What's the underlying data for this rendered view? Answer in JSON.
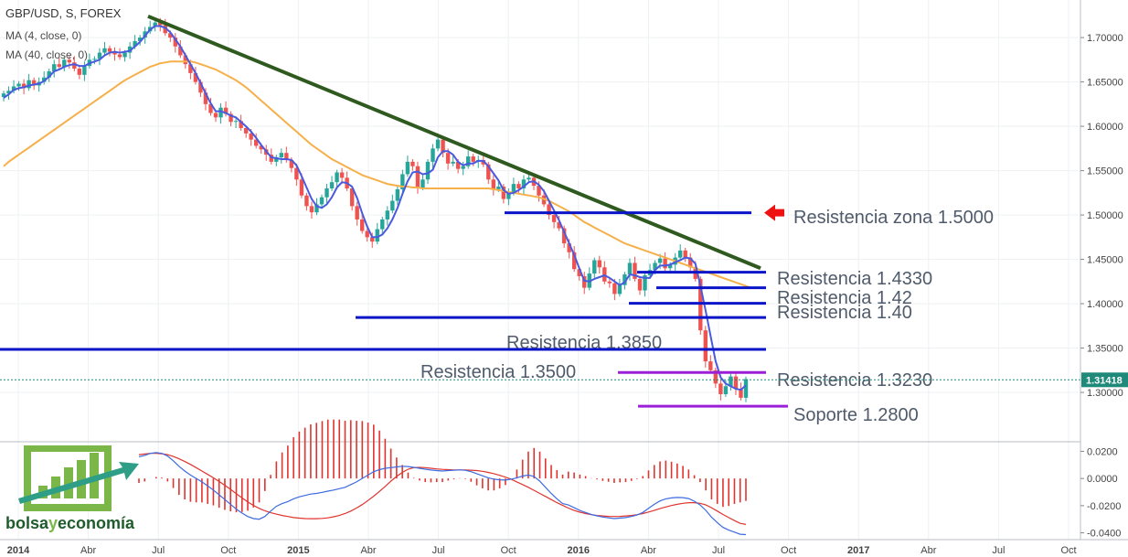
{
  "header": {
    "symbol": "GBP/USD, S, FOREX",
    "ma_fast": "MA (4, close, 0)",
    "ma_slow": "MA (40, close, 0)"
  },
  "logo": {
    "text_bolsa": "bolsa",
    "text_y": "y",
    "text_economia": "economía",
    "brand_green": "#7ab648",
    "brand_dark": "#1e5c2c"
  },
  "colors": {
    "up": "#26a69a",
    "down": "#ef5350",
    "ma_fast": "#4a5adf",
    "ma_slow": "#f5b04a",
    "trendline": "#2f5a1f",
    "resistance": "#0a14c8",
    "support": "#9b1fd6",
    "macd_line": "#3d6be0",
    "signal_line": "#e0342e",
    "histogram": "#e0342e",
    "last_price_bg": "#1f8a7a",
    "arrow": "#ee1111"
  },
  "chart_data": [
    {
      "type": "candlestick",
      "title": "GBP/USD, S, FOREX",
      "ylim": [
        1.265,
        1.73
      ],
      "y_ticks": [
        "1.30000",
        "1.35000",
        "1.40000",
        "1.45000",
        "1.50000",
        "1.55000",
        "1.60000",
        "1.65000",
        "1.70000"
      ],
      "x_ticks": [
        "2014",
        "Abr",
        "Jul",
        "Oct",
        "2015",
        "Abr",
        "Jul",
        "Oct",
        "2016",
        "Abr",
        "Jul",
        "Oct",
        "2017",
        "Abr",
        "Jul",
        "Oct"
      ],
      "last_price": "1.31418",
      "grid": true,
      "closes": [
        1.637,
        1.64,
        1.645,
        1.648,
        1.643,
        1.652,
        1.646,
        1.65,
        1.655,
        1.662,
        1.67,
        1.667,
        1.675,
        1.672,
        1.665,
        1.658,
        1.668,
        1.675,
        1.676,
        1.683,
        1.688,
        1.684,
        1.681,
        1.678,
        1.683,
        1.69,
        1.696,
        1.7,
        1.707,
        1.712,
        1.717,
        1.714,
        1.705,
        1.7,
        1.69,
        1.68,
        1.67,
        1.66,
        1.65,
        1.638,
        1.625,
        1.615,
        1.61,
        1.621,
        1.614,
        1.605,
        1.606,
        1.598,
        1.592,
        1.585,
        1.578,
        1.574,
        1.568,
        1.56,
        1.565,
        1.57,
        1.562,
        1.553,
        1.54,
        1.522,
        1.51,
        1.503,
        1.512,
        1.52,
        1.53,
        1.537,
        1.548,
        1.542,
        1.53,
        1.51,
        1.495,
        1.482,
        1.475,
        1.47,
        1.484,
        1.495,
        1.505,
        1.516,
        1.529,
        1.546,
        1.56,
        1.555,
        1.531,
        1.54,
        1.56,
        1.575,
        1.585,
        1.57,
        1.558,
        1.56,
        1.552,
        1.555,
        1.566,
        1.56,
        1.562,
        1.557,
        1.54,
        1.529,
        1.532,
        1.518,
        1.525,
        1.535,
        1.53,
        1.54,
        1.542,
        1.533,
        1.522,
        1.512,
        1.5,
        1.492,
        1.485,
        1.468,
        1.458,
        1.439,
        1.431,
        1.418,
        1.434,
        1.449,
        1.441,
        1.425,
        1.423,
        1.411,
        1.421,
        1.433,
        1.446,
        1.428,
        1.415,
        1.432,
        1.438,
        1.446,
        1.451,
        1.44,
        1.444,
        1.452,
        1.46,
        1.452,
        1.441,
        1.428,
        1.37,
        1.335,
        1.325,
        1.31,
        1.298,
        1.307,
        1.318,
        1.304,
        1.294,
        1.315
      ],
      "ma_fast": [
        1.632,
        1.636,
        1.641,
        1.643,
        1.644,
        1.646,
        1.647,
        1.648,
        1.651,
        1.656,
        1.662,
        1.664,
        1.667,
        1.669,
        1.67,
        1.668,
        1.668,
        1.671,
        1.673,
        1.675,
        1.68,
        1.683,
        1.684,
        1.683,
        1.684,
        1.685,
        1.69,
        1.695,
        1.702,
        1.709,
        1.713,
        1.713,
        1.711,
        1.706,
        1.698,
        1.69,
        1.68,
        1.67,
        1.66,
        1.649,
        1.637,
        1.626,
        1.617,
        1.617,
        1.615,
        1.612,
        1.61,
        1.605,
        1.6,
        1.594,
        1.587,
        1.579,
        1.572,
        1.565,
        1.564,
        1.563,
        1.563,
        1.562,
        1.556,
        1.544,
        1.531,
        1.518,
        1.51,
        1.508,
        1.512,
        1.52,
        1.531,
        1.537,
        1.536,
        1.532,
        1.519,
        1.502,
        1.487,
        1.475,
        1.475,
        1.478,
        1.485,
        1.495,
        1.508,
        1.524,
        1.538,
        1.548,
        1.549,
        1.546,
        1.547,
        1.551,
        1.565,
        1.572,
        1.572,
        1.568,
        1.56,
        1.556,
        1.558,
        1.558,
        1.561,
        1.561,
        1.555,
        1.547,
        1.539,
        1.528,
        1.524,
        1.525,
        1.528,
        1.532,
        1.537,
        1.538,
        1.534,
        1.527,
        1.516,
        1.505,
        1.494,
        1.481,
        1.468,
        1.455,
        1.44,
        1.426,
        1.425,
        1.428,
        1.43,
        1.432,
        1.429,
        1.425,
        1.421,
        1.424,
        1.433,
        1.432,
        1.43,
        1.429,
        1.429,
        1.438,
        1.443,
        1.443,
        1.444,
        1.447,
        1.449,
        1.452,
        1.451,
        1.445,
        1.42,
        1.393,
        1.364,
        1.335,
        1.317,
        1.31,
        1.307,
        1.304,
        1.303,
        1.308
      ],
      "ma_slow": [
        1.555,
        1.56,
        1.564,
        1.568,
        1.572,
        1.576,
        1.58,
        1.584,
        1.588,
        1.592,
        1.596,
        1.6,
        1.604,
        1.608,
        1.612,
        1.616,
        1.62,
        1.624,
        1.628,
        1.632,
        1.636,
        1.64,
        1.644,
        1.648,
        1.652,
        1.655,
        1.658,
        1.661,
        1.664,
        1.667,
        1.669,
        1.671,
        1.672,
        1.673,
        1.673,
        1.673,
        1.673,
        1.673,
        1.672,
        1.67,
        1.668,
        1.666,
        1.664,
        1.661,
        1.658,
        1.655,
        1.652,
        1.648,
        1.644,
        1.639,
        1.634,
        1.629,
        1.624,
        1.619,
        1.614,
        1.609,
        1.604,
        1.599,
        1.594,
        1.589,
        1.584,
        1.579,
        1.575,
        1.571,
        1.567,
        1.563,
        1.56,
        1.557,
        1.554,
        1.551,
        1.548,
        1.545,
        1.543,
        1.541,
        1.539,
        1.537,
        1.535,
        1.534,
        1.533,
        1.532,
        1.532,
        1.531,
        1.531,
        1.53,
        1.53,
        1.53,
        1.53,
        1.53,
        1.53,
        1.53,
        1.53,
        1.53,
        1.53,
        1.53,
        1.53,
        1.53,
        1.53,
        1.529,
        1.528,
        1.527,
        1.526,
        1.525,
        1.524,
        1.523,
        1.522,
        1.521,
        1.52,
        1.518,
        1.516,
        1.513,
        1.51,
        1.507,
        1.504,
        1.5,
        1.496,
        1.492,
        1.489,
        1.486,
        1.483,
        1.48,
        1.477,
        1.474,
        1.471,
        1.468,
        1.466,
        1.464,
        1.462,
        1.46,
        1.458,
        1.456,
        1.454,
        1.452,
        1.45,
        1.448,
        1.446,
        1.444,
        1.442,
        1.44,
        1.438,
        1.436,
        1.434,
        1.432,
        1.43,
        1.428,
        1.426,
        1.424,
        1.422,
        1.42,
        1.418
      ],
      "annotations": [
        {
          "label": "Resistencia zona 1.5000",
          "level": 1.5025,
          "kind": "resistance",
          "from": 0.6,
          "to": 0.733,
          "label_pos": "right-of-line",
          "arrow": true
        },
        {
          "label": "Resistencia 1.4330",
          "level": 1.4355,
          "kind": "resistance",
          "from": 0.753,
          "to": 0.775,
          "label_pos": "right-of-line"
        },
        {
          "label": "Resistencia 1.42",
          "level": 1.418,
          "kind": "resistance",
          "from": 0.777,
          "to": 0.79,
          "label_pos": "right-of-line"
        },
        {
          "label": "Resistencia 1.40",
          "level": 1.4005,
          "kind": "resistance",
          "from": 0.79,
          "to": 0.8,
          "label_pos": "right-of-line"
        },
        {
          "label": "Resistencia 1.3850",
          "level": 1.3845,
          "kind": "resistance",
          "from": 0.47,
          "to": 0.48,
          "label_pos": "below-line"
        },
        {
          "label": "Resistencia 1.3500",
          "level": 1.3485,
          "kind": "resistance",
          "from": 0.0,
          "to": 0.0,
          "label_pos": "below-line"
        },
        {
          "label": "Resistencia 1.3230",
          "level": 1.3225,
          "kind": "resistance-minor",
          "from": 0.0,
          "to": 0.0,
          "label_pos": "right-of-line"
        },
        {
          "label": "Soporte 1.2800",
          "level": 1.2845,
          "kind": "support",
          "from": 0.0,
          "to": 0.0,
          "label_pos": "right-of-line"
        }
      ],
      "trendline": {
        "from_date": "2014-07",
        "from_price": 1.724,
        "to_date": "2016-08",
        "to_price": 1.44
      }
    },
    {
      "type": "line",
      "title": "",
      "ylim": [
        -0.045,
        0.025
      ],
      "y_ticks": [
        "0.0200",
        "0.0000",
        "-0.0200",
        "-0.0400"
      ],
      "macd": [
        0.016,
        0.017,
        0.0185,
        0.019,
        0.0185,
        0.0165,
        0.013,
        0.009,
        0.0055,
        0.0025,
        0.0,
        -0.0025,
        -0.0055,
        -0.0085,
        -0.012,
        -0.0155,
        -0.019,
        -0.0225,
        -0.0255,
        -0.028,
        -0.0295,
        -0.03,
        -0.028,
        -0.024,
        -0.0205,
        -0.0185,
        -0.017,
        -0.015,
        -0.0135,
        -0.0125,
        -0.0115,
        -0.011,
        -0.0102,
        -0.0093,
        -0.0085,
        -0.0075,
        -0.0065,
        -0.0045,
        -0.0025,
        0.0,
        0.0025,
        0.005,
        0.0065,
        0.0075,
        0.008,
        0.0085,
        0.009,
        0.0088,
        0.0082,
        0.0075,
        0.0068,
        0.0062,
        0.0058,
        0.0055,
        0.0058,
        0.006,
        0.0063,
        0.006,
        0.005,
        0.0035,
        0.002,
        0.0005,
        -0.0005,
        -0.001,
        -0.0012,
        -0.0005,
        0.0005,
        0.0018,
        0.0025,
        0.0015,
        -0.002,
        -0.0065,
        -0.011,
        -0.015,
        -0.0185,
        -0.0195,
        -0.0215,
        -0.0235,
        -0.025,
        -0.0265,
        -0.0275,
        -0.0284,
        -0.029,
        -0.0295,
        -0.0292,
        -0.0288,
        -0.028,
        -0.0268,
        -0.025,
        -0.022,
        -0.019,
        -0.0165,
        -0.015,
        -0.0143,
        -0.014,
        -0.0141,
        -0.0148,
        -0.0167,
        -0.0195,
        -0.0235,
        -0.0285,
        -0.0325,
        -0.036,
        -0.038,
        -0.0395,
        -0.041,
        -0.0413
      ],
      "signal": [
        0.0175,
        0.018,
        0.0185,
        0.0185,
        0.0182,
        0.0175,
        0.0162,
        0.0145,
        0.0125,
        0.0103,
        0.008,
        0.0055,
        0.003,
        0.0005,
        -0.0022,
        -0.005,
        -0.008,
        -0.0112,
        -0.0143,
        -0.0172,
        -0.0198,
        -0.022,
        -0.0238,
        -0.0252,
        -0.0262,
        -0.0272,
        -0.028,
        -0.0288,
        -0.0292,
        -0.0295,
        -0.0296,
        -0.0296,
        -0.0294,
        -0.029,
        -0.0282,
        -0.0272,
        -0.0258,
        -0.024,
        -0.0218,
        -0.0192,
        -0.0162,
        -0.013,
        -0.0095,
        -0.0058,
        -0.002,
        0.0015,
        0.0045,
        0.0068,
        0.008,
        0.0082,
        0.008,
        0.0075,
        0.007,
        0.0067,
        0.0065,
        0.0063,
        0.0062,
        0.0062,
        0.0061,
        0.0058,
        0.0053,
        0.0045,
        0.0035,
        0.0023,
        0.001,
        -0.0005,
        -0.0025,
        -0.0045,
        -0.0065,
        -0.0087,
        -0.011,
        -0.0132,
        -0.0155,
        -0.0178,
        -0.0198,
        -0.0218,
        -0.0235,
        -0.0248,
        -0.0258,
        -0.0266,
        -0.0272,
        -0.0276,
        -0.0279,
        -0.028,
        -0.0279,
        -0.0276,
        -0.0272,
        -0.0266,
        -0.0258,
        -0.0247,
        -0.0235,
        -0.0222,
        -0.021,
        -0.0199,
        -0.019,
        -0.0183,
        -0.0178,
        -0.0178,
        -0.0183,
        -0.0195,
        -0.0215,
        -0.024,
        -0.0265,
        -0.0288,
        -0.031,
        -0.033,
        -0.0338
      ]
    }
  ]
}
